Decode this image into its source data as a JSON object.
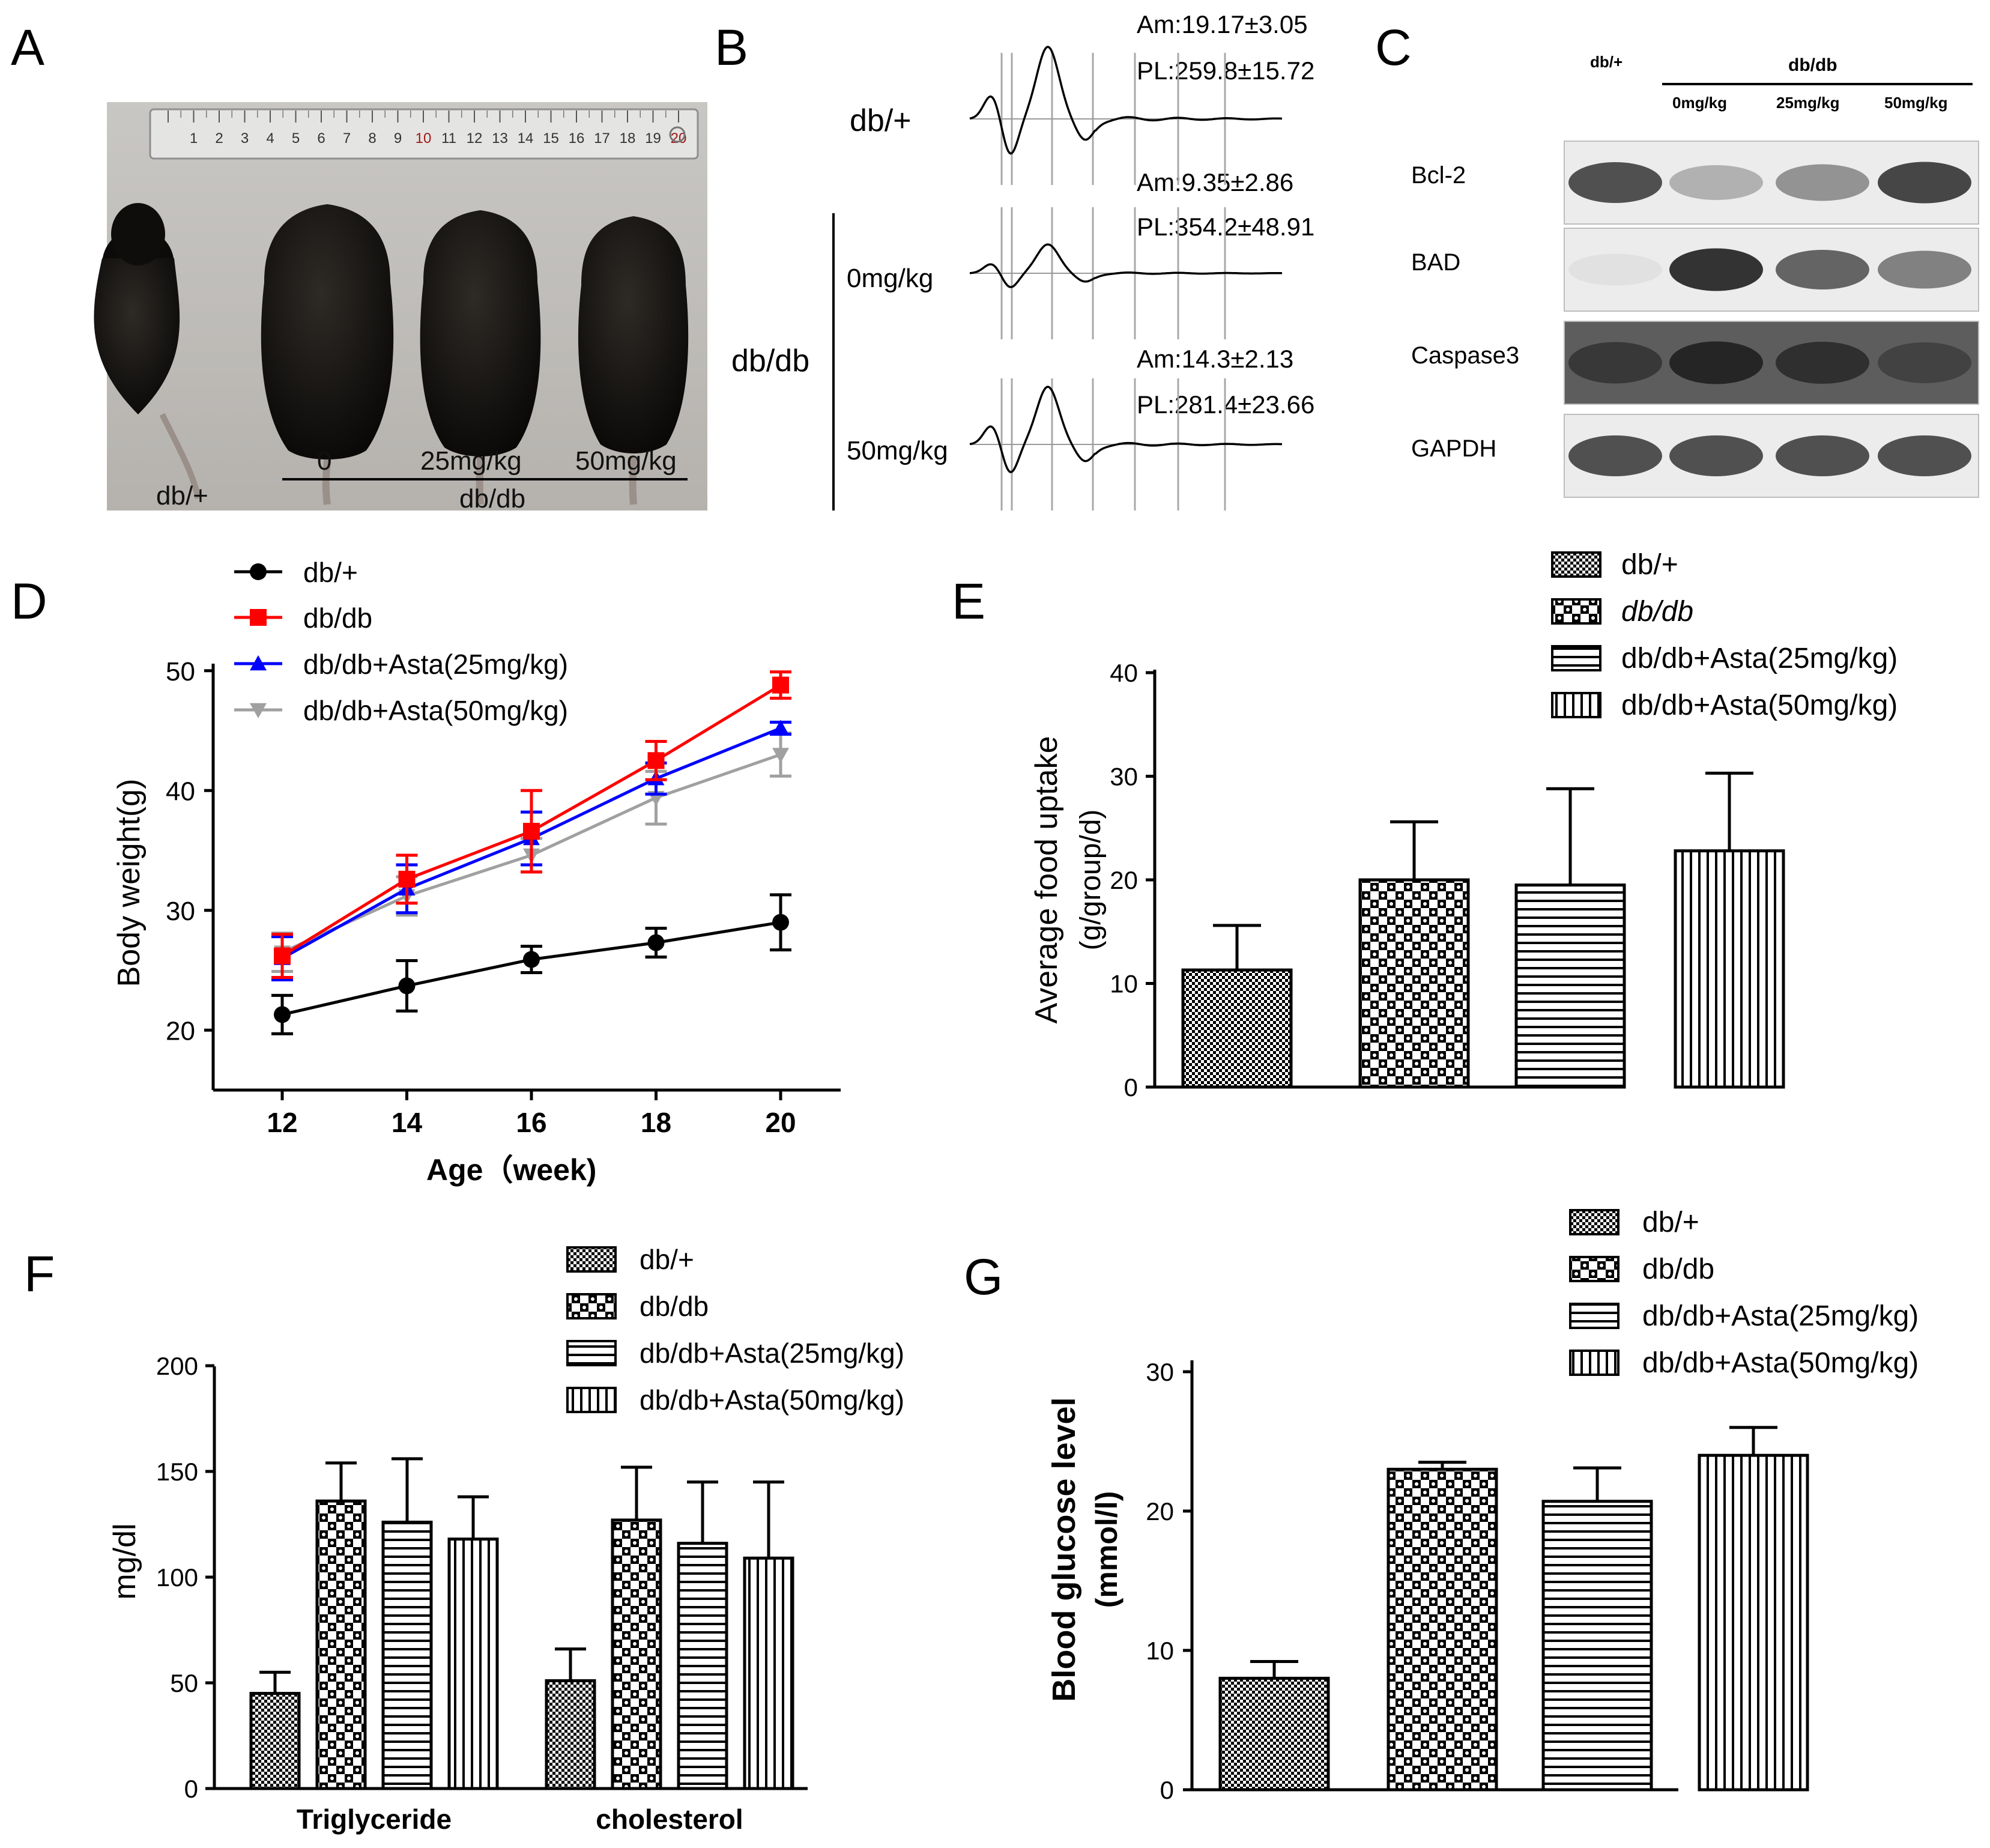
{
  "panel_letters": [
    "A",
    "B",
    "C",
    "D",
    "E",
    "F",
    "G"
  ],
  "panel_a": {
    "ruler_numbers": [
      "1",
      "2",
      "3",
      "4",
      "5",
      "6",
      "7",
      "8",
      "9",
      "10",
      "11",
      "12",
      "13",
      "14",
      "15",
      "16",
      "17",
      "18",
      "19",
      "20"
    ],
    "dose_labels": [
      "0",
      "25mg/kg",
      "50mg/kg"
    ],
    "control_label": "db/+",
    "group_label": "db/db"
  },
  "panel_b": {
    "traces": [
      {
        "label": "db/+",
        "am": "Am:19.17±3.05",
        "pl": "PL:259.8±15.72",
        "amp": 1.0
      },
      {
        "label": "0mg/kg",
        "am": "Am:9.35±2.86",
        "pl": "PL:354.2±48.91",
        "amp": 0.4
      },
      {
        "label": "50mg/kg",
        "am": "Am:14.3±2.13",
        "pl": "PL:281.4±23.66",
        "amp": 0.8
      }
    ],
    "group_label": "db/db"
  },
  "panel_c": {
    "col_control": "db/+",
    "col_group": "db/db",
    "col_doses": [
      "0mg/kg",
      "25mg/kg",
      "50mg/kg"
    ],
    "rows": [
      {
        "label": "Bcl-2",
        "intensities": [
          0.8,
          0.3,
          0.45,
          0.85
        ]
      },
      {
        "label": "BAD",
        "intensities": [
          0.05,
          0.95,
          0.7,
          0.55
        ]
      },
      {
        "label": "Caspase3",
        "intensities": [
          0.85,
          0.95,
          0.9,
          0.8
        ]
      },
      {
        "label": "GAPDH",
        "intensities": [
          0.8,
          0.8,
          0.8,
          0.8
        ]
      }
    ]
  },
  "chart_data": [
    {
      "panel": "D",
      "type": "line",
      "xlabel": "Age（week)",
      "ylabel": "Body weight(g)",
      "x": [
        12,
        14,
        16,
        18,
        20
      ],
      "xticks": [
        "12",
        "14",
        "16",
        "18",
        "20"
      ],
      "yticks": [
        "20",
        "30",
        "40",
        "50"
      ],
      "ylim": [
        15,
        50
      ],
      "legend": "top-left",
      "series": [
        {
          "name": "db/+",
          "color": "#000000",
          "marker": "circle",
          "values": [
            21.3,
            23.7,
            25.9,
            27.3,
            29.0
          ],
          "errors": [
            1.6,
            2.1,
            1.1,
            1.2,
            2.3
          ]
        },
        {
          "name": "db/db",
          "color": "#ff0000",
          "marker": "square",
          "values": [
            26.2,
            32.6,
            36.6,
            42.5,
            48.8
          ],
          "errors": [
            1.8,
            2.0,
            3.4,
            1.6,
            1.1
          ]
        },
        {
          "name": "db/db+Asta(25mg/kg)",
          "color": "#0000ff",
          "marker": "triangle-up",
          "values": [
            26.0,
            31.8,
            36.0,
            41.0,
            45.2
          ],
          "errors": [
            1.8,
            2.0,
            2.2,
            1.3,
            0.5
          ]
        },
        {
          "name": "db/db+Asta(50mg/kg)",
          "color": "#a0a0a0",
          "marker": "triangle-down",
          "values": [
            26.5,
            31.2,
            34.6,
            39.4,
            43.0
          ],
          "errors": [
            1.6,
            1.6,
            1.4,
            2.2,
            1.8
          ]
        }
      ]
    },
    {
      "panel": "E",
      "type": "bar",
      "ylabel": "Average food uptake",
      "ylabel2": "(g/group/d)",
      "categories": [
        "db/+",
        "db/db",
        "db/db+Asta(25mg/kg)",
        "db/db+Asta(50mg/kg)"
      ],
      "legend_italic": [
        false,
        true,
        false,
        false
      ],
      "values": [
        11.3,
        20.0,
        19.5,
        22.8
      ],
      "errors": [
        4.3,
        5.6,
        9.3,
        7.5
      ],
      "yticks": [
        "0",
        "10",
        "20",
        "30",
        "40"
      ],
      "ylim": [
        0,
        40
      ],
      "legend": "top"
    },
    {
      "panel": "F",
      "type": "bar",
      "ylabel": "mg/dl",
      "groups": [
        "Triglyceride",
        "cholesterol"
      ],
      "series": [
        {
          "name": "db/+",
          "values": [
            45,
            51
          ],
          "errors": [
            10,
            15
          ]
        },
        {
          "name": "db/db",
          "values": [
            136,
            127
          ],
          "errors": [
            18,
            25
          ]
        },
        {
          "name": "db/db+Asta(25mg/kg)",
          "values": [
            126,
            116
          ],
          "errors": [
            30,
            29
          ]
        },
        {
          "name": "db/db+Asta(50mg/kg)",
          "values": [
            118,
            109
          ],
          "errors": [
            20,
            36
          ]
        }
      ],
      "yticks": [
        "0",
        "50",
        "100",
        "150",
        "200"
      ],
      "ylim": [
        0,
        200
      ],
      "legend": "top-right"
    },
    {
      "panel": "G",
      "type": "bar",
      "ylabel": "Blood glucose level",
      "ylabel2": "(mmol/l)",
      "categories": [
        "db/+",
        "db/db",
        "db/db+Asta(25mg/kg)",
        "db/db+Asta(50mg/kg)"
      ],
      "values": [
        8.0,
        23.0,
        20.7,
        24.0
      ],
      "errors": [
        1.2,
        0.5,
        2.4,
        2.0
      ],
      "yticks": [
        "0",
        "10",
        "20",
        "30"
      ],
      "ylim": [
        0,
        30
      ],
      "legend": "top-right"
    }
  ]
}
